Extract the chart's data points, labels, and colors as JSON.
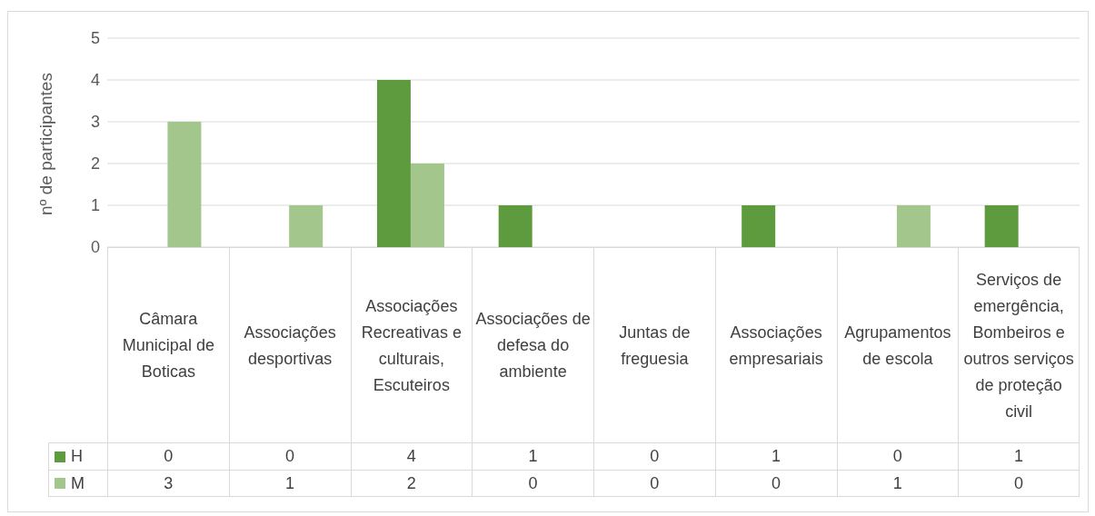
{
  "chart_data": {
    "type": "bar",
    "ylabel": "nº de participantes",
    "categories": [
      "Câmara Municipal de Boticas",
      "Associações desportivas",
      "Associações Recreativas e culturais, Escuteiros",
      "Associações de defesa do ambiente",
      "Juntas de freguesia",
      "Associações empresariais",
      "Agrupamentos de escola",
      "Serviços de emergência, Bombeiros e outros serviços de proteção civil"
    ],
    "series": [
      {
        "name": "H",
        "color": "#5e9a3e",
        "values": [
          0,
          0,
          4,
          1,
          0,
          1,
          0,
          1
        ]
      },
      {
        "name": "M",
        "color": "#a2c68c",
        "values": [
          3,
          1,
          2,
          0,
          0,
          0,
          1,
          0
        ]
      }
    ],
    "ylim": [
      0,
      5
    ],
    "yticks": [
      0,
      1,
      2,
      3,
      4,
      5
    ],
    "grid": "y",
    "legend": "bottom",
    "data_labels": true
  }
}
